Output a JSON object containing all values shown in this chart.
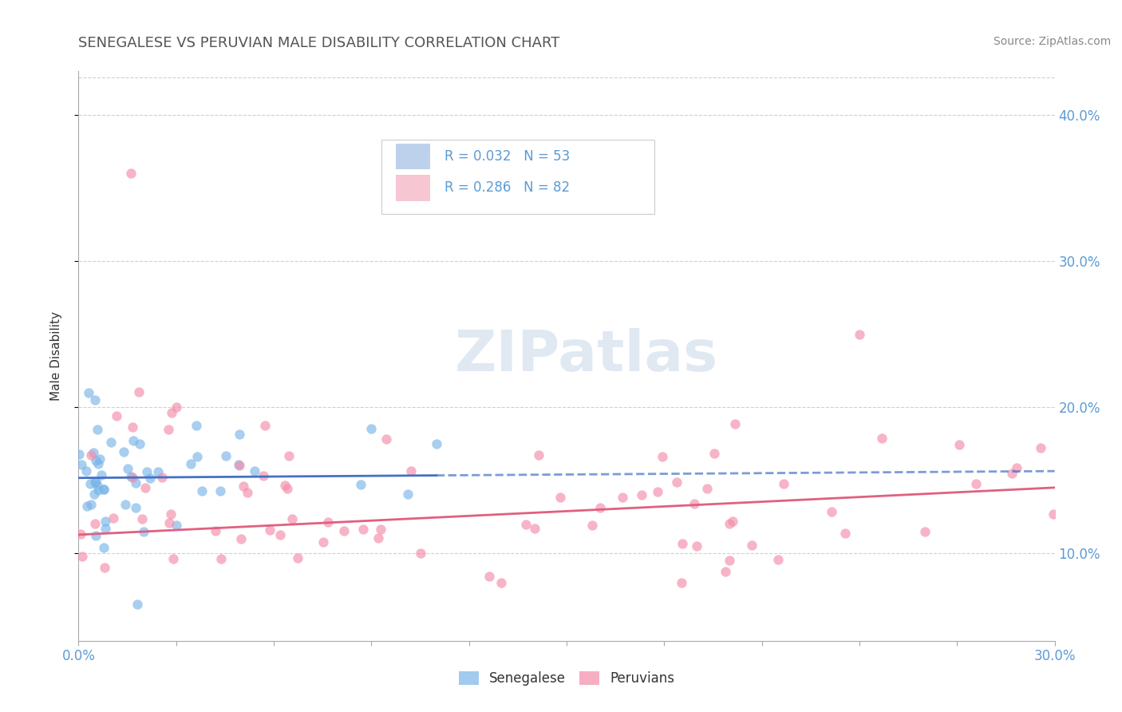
{
  "title": "SENEGALESE VS PERUVIAN MALE DISABILITY CORRELATION CHART",
  "source": "Source: ZipAtlas.com",
  "xlim": [
    0.0,
    0.3
  ],
  "ylim": [
    0.04,
    0.43
  ],
  "y_ticks": [
    0.1,
    0.2,
    0.3,
    0.4
  ],
  "senegalese_color": "#7ab4e8",
  "peruvian_color": "#f48ca8",
  "watermark_text": "ZIPatlas",
  "background_color": "#ffffff",
  "senegalese_R": 0.032,
  "senegalese_N": 53,
  "peruvian_R": 0.286,
  "peruvian_N": 82,
  "legend_box_color": "#aec6e8",
  "legend_pink_color": "#f4b8c8",
  "title_color": "#555555",
  "source_color": "#888888",
  "tick_color": "#5b9bd5",
  "ylabel_color": "#333333",
  "grid_color": "#d0d0d0",
  "blue_line_color": "#4472c4",
  "pink_line_color": "#e06080"
}
